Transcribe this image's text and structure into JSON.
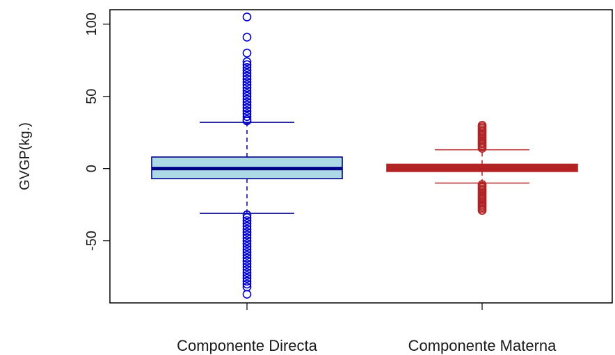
{
  "chart_data": {
    "type": "box",
    "xlabel": "",
    "ylabel": "GVGP(kg.)",
    "ylim": [
      -93,
      110
    ],
    "yticks": [
      100,
      50,
      0,
      -50
    ],
    "ytick_labels": [
      "100",
      "50",
      "0",
      "-50"
    ],
    "grid": false,
    "legend": "none",
    "categories": [
      "Componente Directa",
      "Componente Materna"
    ],
    "series": [
      {
        "category": "Componente Directa",
        "box_fill": "#add8e6",
        "line_color": "#00008b",
        "outlier_color": "#0000cd",
        "median": 0,
        "q1": -7,
        "q3": 8,
        "whisker_low": -31,
        "whisker_high": 32,
        "outliers_high": [
          105,
          91,
          80,
          74,
          72,
          70,
          68,
          66,
          64,
          62,
          60,
          58,
          56,
          54,
          52,
          50,
          48,
          46,
          44,
          42,
          40,
          38,
          36,
          34,
          33
        ],
        "outliers_low": [
          -32,
          -34,
          -36,
          -38,
          -40,
          -42,
          -44,
          -46,
          -48,
          -50,
          -52,
          -54,
          -56,
          -58,
          -60,
          -62,
          -64,
          -66,
          -68,
          -70,
          -72,
          -74,
          -76,
          -78,
          -80,
          -82,
          -87
        ]
      },
      {
        "category": "Componente Materna",
        "box_fill": "#b22222",
        "line_color": "#b22222",
        "outlier_color": "#b22222",
        "median": 1,
        "q1": -2,
        "q3": 3,
        "whisker_low": -10,
        "whisker_high": 13,
        "outliers_high": [
          30,
          29,
          28,
          27,
          26,
          25,
          24,
          23,
          22,
          21,
          20,
          19,
          18,
          17,
          16,
          15,
          14
        ],
        "outliers_low": [
          -11,
          -12,
          -13,
          -14,
          -15,
          -16,
          -17,
          -18,
          -19,
          -20,
          -21,
          -22,
          -23,
          -24,
          -25,
          -26,
          -27,
          -28,
          -29
        ]
      }
    ]
  }
}
